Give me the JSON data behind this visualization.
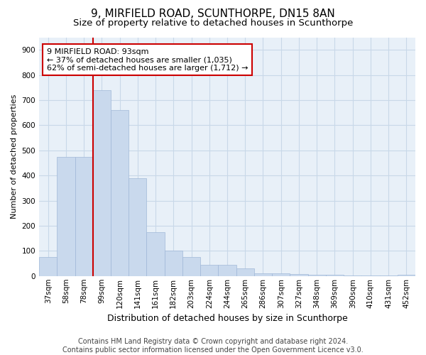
{
  "title": "9, MIRFIELD ROAD, SCUNTHORPE, DN15 8AN",
  "subtitle": "Size of property relative to detached houses in Scunthorpe",
  "xlabel": "Distribution of detached houses by size in Scunthorpe",
  "ylabel": "Number of detached properties",
  "categories": [
    "37sqm",
    "58sqm",
    "78sqm",
    "99sqm",
    "120sqm",
    "141sqm",
    "161sqm",
    "182sqm",
    "203sqm",
    "224sqm",
    "244sqm",
    "265sqm",
    "286sqm",
    "307sqm",
    "327sqm",
    "348sqm",
    "369sqm",
    "390sqm",
    "410sqm",
    "431sqm",
    "452sqm"
  ],
  "values": [
    75,
    475,
    475,
    740,
    660,
    390,
    175,
    100,
    75,
    45,
    45,
    30,
    12,
    10,
    8,
    5,
    5,
    2,
    2,
    1,
    5
  ],
  "bar_color": "#c9d9ed",
  "bar_edge_color": "#a0b8d8",
  "redline_x": 2.5,
  "annotation_line1": "9 MIRFIELD ROAD: 93sqm",
  "annotation_line2": "← 37% of detached houses are smaller (1,035)",
  "annotation_line3": "62% of semi-detached houses are larger (1,712) →",
  "annotation_box_color": "#ffffff",
  "annotation_box_edge": "#cc0000",
  "ylim": [
    0,
    950
  ],
  "yticks": [
    0,
    100,
    200,
    300,
    400,
    500,
    600,
    700,
    800,
    900
  ],
  "footer1": "Contains HM Land Registry data © Crown copyright and database right 2024.",
  "footer2": "Contains public sector information licensed under the Open Government Licence v3.0.",
  "bg_color": "#ffffff",
  "plot_bg_color": "#e8f0f8",
  "grid_color": "#c8d8e8",
  "title_fontsize": 11,
  "subtitle_fontsize": 9.5,
  "xlabel_fontsize": 9,
  "ylabel_fontsize": 8,
  "tick_fontsize": 7.5,
  "annotation_fontsize": 8,
  "redline_color": "#cc0000",
  "footer_fontsize": 7
}
